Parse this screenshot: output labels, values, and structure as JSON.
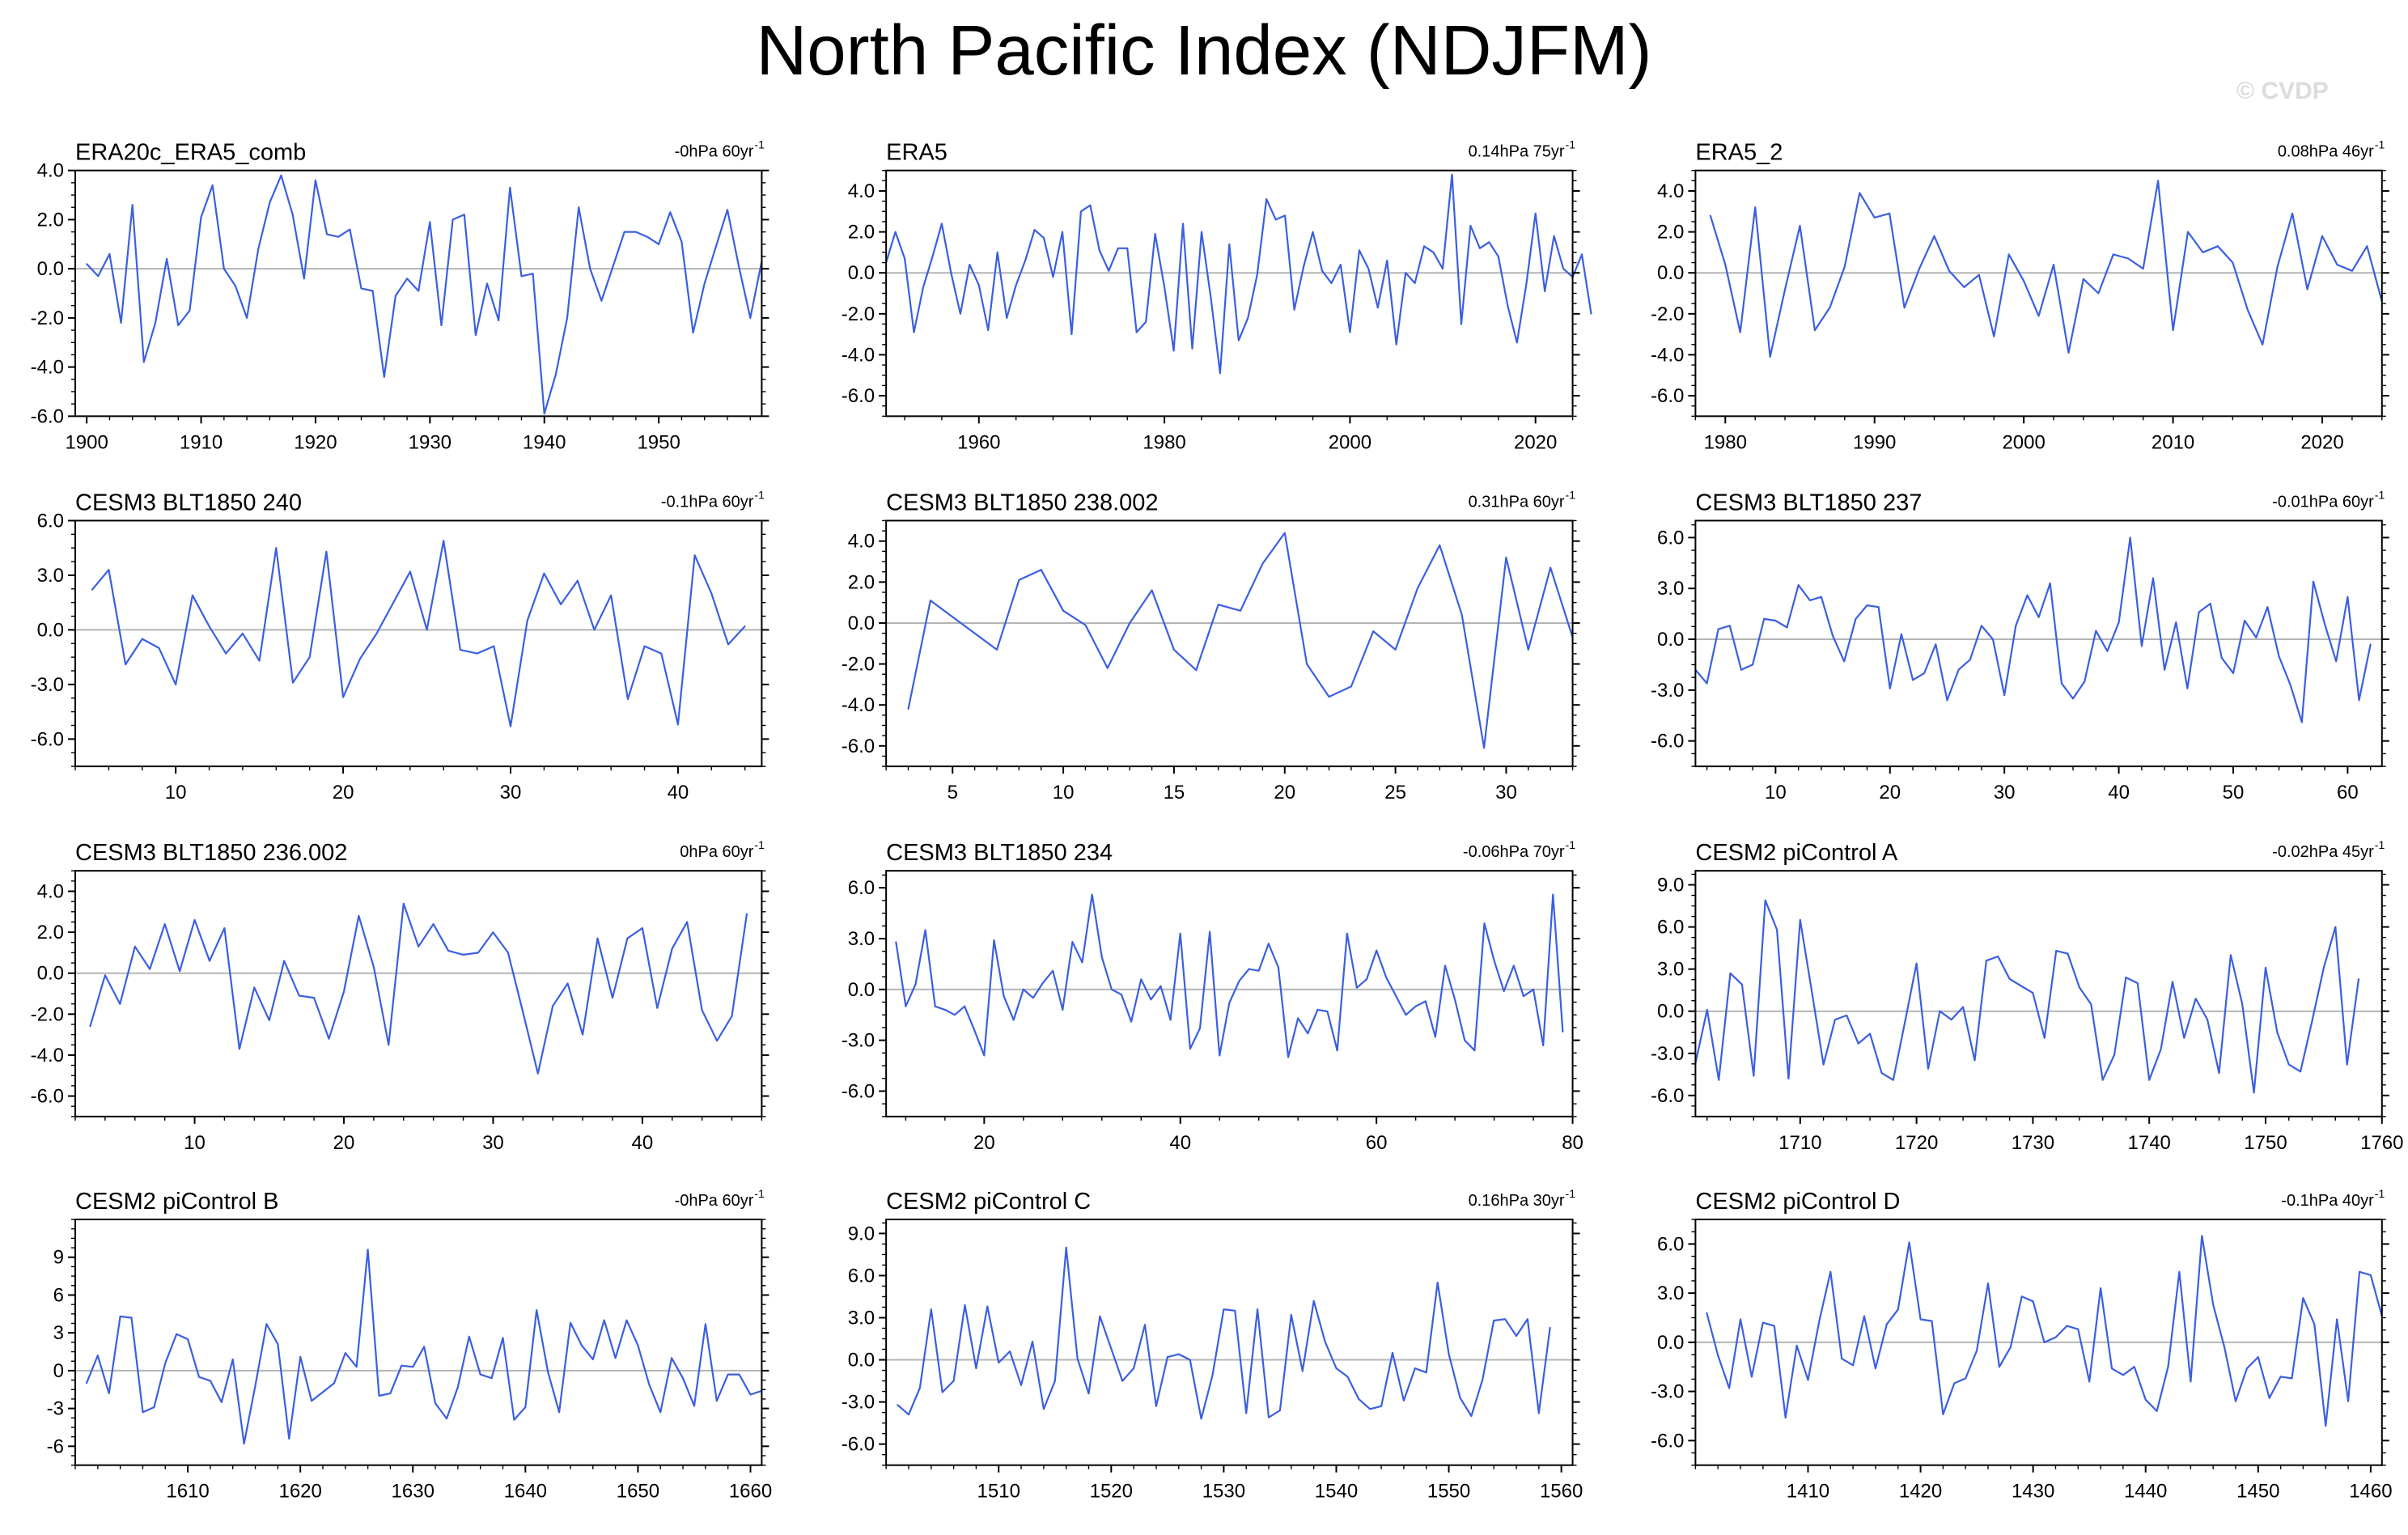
{
  "title": "North Pacific Index (NDJFM)",
  "watermark": "© CVDP",
  "style": {
    "line_color": "#3b5fe0",
    "zero_line_color": "#b4b4b4",
    "secondary_line_color": "#777777"
  },
  "chart_data": [
    {
      "type": "line",
      "title": "ERA20c_ERA5_comb",
      "trend": "-0hPa 60yr",
      "xlim": [
        1899,
        1959
      ],
      "ylim": [
        -6,
        4
      ],
      "xticks": [
        1900,
        1910,
        1920,
        1930,
        1940,
        1950
      ],
      "yticks": [
        -6,
        -4,
        -2,
        0,
        2,
        4
      ],
      "ytick_labels": [
        "-6.0",
        "-4.0",
        "-2.0",
        "0.0",
        "2.0",
        "4.0"
      ],
      "x_start": 1900,
      "series": [
        {
          "values": [
            0.2,
            -0.3,
            0.6,
            -2.2,
            2.6,
            -3.8,
            -2.2,
            0.4,
            -2.3,
            -1.7,
            2.1,
            3.4,
            0.0,
            -0.7,
            -2.0,
            0.8,
            2.7,
            3.8,
            2.2,
            -0.4,
            3.6,
            1.4,
            1.3,
            1.6,
            -0.8,
            -0.9,
            -4.4,
            -1.1,
            -0.4,
            -0.9,
            1.9,
            -2.3,
            2.0,
            2.2,
            -2.7,
            -0.6,
            -2.1,
            3.3,
            -0.3,
            -0.2,
            -5.9,
            -4.3,
            -2.0,
            2.5,
            0.0,
            -1.3,
            0.1,
            1.5,
            1.5,
            1.3,
            1.0,
            2.3,
            1.1,
            -2.6,
            -0.6,
            0.9,
            2.4,
            0.1,
            -2.0,
            0.3
          ]
        }
      ]
    },
    {
      "type": "line",
      "title": "ERA5",
      "trend": "0.14hPa 75yr",
      "xlim": [
        1950,
        2024
      ],
      "ylim": [
        -7,
        5
      ],
      "xticks": [
        1960,
        1980,
        2000,
        2020
      ],
      "yticks": [
        -6,
        -4,
        -2,
        0,
        2,
        4
      ],
      "ytick_labels": [
        "-6.0",
        "-4.0",
        "-2.0",
        "0.0",
        "2.0",
        "4.0"
      ],
      "x_start": 1950,
      "series": [
        {
          "values": [
            0.5,
            2.0,
            0.7,
            -2.9,
            -0.7,
            0.8,
            2.4,
            0.0,
            -2.0,
            0.4,
            -0.6,
            -2.8,
            1.0,
            -2.2,
            -0.6,
            0.6,
            2.1,
            1.7,
            -0.2,
            2.0,
            -3.0,
            3.0,
            3.3,
            1.1,
            0.1,
            1.2,
            1.2,
            -2.9,
            -2.4,
            1.9,
            -0.7,
            -3.8,
            2.4,
            -3.7,
            2.0,
            -1.2,
            -4.9,
            1.4,
            -3.3,
            -2.2,
            -0.1,
            3.6,
            2.6,
            2.8,
            -1.8,
            0.3,
            2.0,
            0.1,
            -0.5,
            0.4,
            -2.9,
            1.1,
            0.2,
            -1.7,
            0.6,
            -3.5,
            0.0,
            -0.5,
            1.3,
            1.0,
            0.2,
            4.8,
            -2.5,
            2.3,
            1.2,
            1.5,
            0.8,
            -1.6,
            -3.4,
            -0.6,
            2.9,
            -0.9,
            1.8,
            0.2,
            -0.2,
            0.9,
            -2.0
          ]
        }
      ]
    },
    {
      "type": "line",
      "title": "ERA5_2",
      "trend": "0.08hPa 46yr",
      "xlim": [
        1978,
        2024
      ],
      "ylim": [
        -7,
        5
      ],
      "xticks": [
        1980,
        1990,
        2000,
        2010,
        2020
      ],
      "yticks": [
        -6,
        -4,
        -2,
        0,
        2,
        4
      ],
      "ytick_labels": [
        "-6.0",
        "-4.0",
        "-2.0",
        "0.0",
        "2.0",
        "4.0"
      ],
      "x_start": 1979,
      "series": [
        {
          "values": [
            2.8,
            0.4,
            -2.9,
            3.2,
            -4.1,
            -0.8,
            2.3,
            -2.8,
            -1.7,
            0.3,
            3.9,
            2.7,
            2.9,
            -1.7,
            0.2,
            1.8,
            0.1,
            -0.7,
            -0.1,
            -3.1,
            0.9,
            -0.4,
            -2.1,
            0.4,
            -3.9,
            -0.3,
            -1.0,
            0.9,
            0.7,
            0.2,
            4.5,
            -2.8,
            2.0,
            1.0,
            1.3,
            0.5,
            -1.8,
            -3.5,
            0.3,
            2.9,
            -0.8,
            1.8,
            0.4,
            0.1,
            1.3,
            -1.4
          ]
        }
      ]
    },
    {
      "type": "line",
      "title": "CESM3 BLT1850 240",
      "trend": "-0.1hPa 60yr",
      "xlim": [
        4,
        45
      ],
      "ylim": [
        -7.5,
        6
      ],
      "xticks": [
        10,
        20,
        30,
        40
      ],
      "yticks": [
        -6,
        -3,
        0,
        3,
        6
      ],
      "ytick_labels": [
        "-6.0",
        "-3.0",
        "0.0",
        "3.0",
        "6.0"
      ],
      "x_start": 5,
      "series": [
        {
          "values": [
            2.2,
            3.3,
            -1.9,
            -0.5,
            -1.0,
            -3.0,
            1.9,
            0.2,
            -1.3,
            -0.2,
            -1.7,
            4.5,
            -2.9,
            -1.5,
            4.3,
            -3.7,
            -1.6,
            -0.2,
            1.5,
            3.2,
            0.0,
            4.9,
            -1.1,
            -1.3,
            -0.9,
            -5.3,
            0.5,
            3.1,
            1.4,
            2.7,
            0.0,
            1.9,
            -3.8,
            -0.9,
            -1.3,
            -5.2,
            4.1,
            2.0,
            -0.8,
            0.2
          ]
        }
      ]
    },
    {
      "type": "line",
      "title": "CESM3 BLT1850 238.002",
      "trend": "0.31hPa 60yr",
      "xlim": [
        2,
        33
      ],
      "ylim": [
        -7,
        5
      ],
      "xticks": [
        5,
        10,
        15,
        20,
        25,
        30
      ],
      "yticks": [
        -6,
        -4,
        -2,
        0,
        2,
        4
      ],
      "ytick_labels": [
        "-6.0",
        "-4.0",
        "-2.0",
        "0.0",
        "2.0",
        "4.0"
      ],
      "x_start": 3,
      "series": [
        {
          "values": [
            -4.2,
            1.1,
            0.3,
            -0.5,
            -1.3,
            2.1,
            2.6,
            0.6,
            -0.1,
            -2.2,
            0.0,
            1.6,
            -1.3,
            -2.3,
            0.9,
            0.6,
            2.9,
            4.4,
            -2.0,
            -3.6,
            -3.1,
            -0.4,
            -1.3,
            1.7,
            3.8,
            0.4,
            -6.1,
            3.2,
            -1.3,
            2.7,
            -0.7
          ]
        }
      ]
    },
    {
      "type": "line",
      "title": "CESM3 BLT1850 237",
      "trend": "-0.01hPa 60yr",
      "xlim": [
        3,
        63
      ],
      "ylim": [
        -7.5,
        7
      ],
      "xticks": [
        10,
        20,
        30,
        40,
        50,
        60
      ],
      "yticks": [
        -6,
        -3,
        0,
        3,
        6
      ],
      "ytick_labels": [
        "-6.0",
        "-3.0",
        "0.0",
        "3.0",
        "6.0"
      ],
      "x_start": 3,
      "series": [
        {
          "values": [
            -1.8,
            -2.6,
            0.6,
            0.8,
            -1.8,
            -1.5,
            1.2,
            1.1,
            0.7,
            3.2,
            2.3,
            2.5,
            0.2,
            -1.3,
            1.2,
            2.0,
            1.9,
            -2.9,
            0.3,
            -2.4,
            -2.0,
            -0.3,
            -3.6,
            -1.8,
            -1.2,
            0.8,
            0.0,
            -3.3,
            0.8,
            2.6,
            1.3,
            3.3,
            -2.6,
            -3.5,
            -2.5,
            0.5,
            -0.7,
            1.0,
            6.0,
            -0.4,
            3.6,
            -1.8,
            1.0,
            -2.9,
            1.6,
            2.1,
            -1.1,
            -2.0,
            1.1,
            0.1,
            1.9,
            -1.0,
            -2.7,
            -4.9,
            3.4,
            0.9,
            -1.3,
            2.5,
            -3.6,
            -0.3
          ]
        }
      ]
    },
    {
      "type": "line",
      "title": "CESM3 BLT1850 236.002",
      "trend": "0hPa 60yr",
      "xlim": [
        2,
        48
      ],
      "ylim": [
        -7,
        5
      ],
      "xticks": [
        10,
        20,
        30,
        40
      ],
      "yticks": [
        -6,
        -4,
        -2,
        0,
        2,
        4
      ],
      "ytick_labels": [
        "-6.0",
        "-4.0",
        "-2.0",
        "0.0",
        "2.0",
        "4.0"
      ],
      "x_start": 3,
      "series": [
        {
          "values": [
            -2.6,
            -0.1,
            -1.5,
            1.3,
            0.2,
            2.4,
            0.1,
            2.6,
            0.6,
            2.2,
            -3.7,
            -0.7,
            -2.3,
            0.6,
            -1.1,
            -1.2,
            -3.2,
            -0.9,
            2.8,
            0.3,
            -3.5,
            3.4,
            1.3,
            2.4,
            1.1,
            0.9,
            1.0,
            2.0,
            1.0,
            -1.9,
            -4.9,
            -1.6,
            -0.5,
            -3.0,
            1.7,
            -1.2,
            1.7,
            2.2,
            -1.7,
            1.2,
            2.5,
            -1.8,
            -3.3,
            -2.1,
            2.9
          ]
        }
      ]
    },
    {
      "type": "line",
      "title": "CESM3 BLT1850 234",
      "trend": "-0.06hPa 70yr",
      "xlim": [
        10,
        80
      ],
      "ylim": [
        -7.5,
        7
      ],
      "xticks": [
        20,
        40,
        60,
        80
      ],
      "yticks": [
        -6,
        -3,
        0,
        3,
        6
      ],
      "ytick_labels": [
        "-6.0",
        "-3.0",
        "0.0",
        "3.0",
        "6.0"
      ],
      "x_start": 11,
      "series": [
        {
          "values": [
            2.8,
            -1.0,
            0.3,
            3.5,
            -1.0,
            -1.2,
            -1.5,
            -1.0,
            -2.4,
            -3.9,
            2.9,
            -0.4,
            -1.8,
            0.0,
            -0.5,
            0.4,
            1.1,
            -1.2,
            2.8,
            1.6,
            5.6,
            1.9,
            0.0,
            -0.3,
            -1.9,
            0.6,
            -0.6,
            0.2,
            -1.8,
            3.3,
            -3.5,
            -2.3,
            3.4,
            -3.9,
            -0.8,
            0.5,
            1.2,
            1.1,
            2.7,
            1.3,
            -4.0,
            -1.7,
            -2.6,
            -1.2,
            -1.3,
            -3.6,
            3.3,
            0.1,
            0.6,
            2.3,
            0.7,
            -0.4,
            -1.5,
            -1.0,
            -0.7,
            -2.8,
            1.4,
            -0.6,
            -3.0,
            -3.6,
            3.9,
            1.7,
            -0.1,
            1.4,
            -0.4,
            0.0,
            -3.3,
            5.6,
            -2.5
          ]
        }
      ]
    },
    {
      "type": "line",
      "title": "CESM2 piControl A",
      "trend": "-0.02hPa 45yr",
      "xlim": [
        1701,
        1760
      ],
      "ylim": [
        -7.5,
        10
      ],
      "xticks": [
        1710,
        1720,
        1730,
        1740,
        1750,
        1760
      ],
      "yticks": [
        -6,
        -3,
        0,
        3,
        6,
        9
      ],
      "ytick_labels": [
        "-6.0",
        "-3.0",
        "0.0",
        "3.0",
        "6.0",
        "9.0"
      ],
      "x_start": 1701,
      "series": [
        {
          "values": [
            -3.7,
            0.1,
            -4.9,
            2.7,
            1.9,
            -4.6,
            7.9,
            5.8,
            -4.8,
            6.5,
            1.4,
            -3.8,
            -0.6,
            -0.3,
            -2.3,
            -1.6,
            -4.4,
            -4.9,
            -0.8,
            3.4,
            -4.1,
            0.0,
            -0.6,
            0.3,
            -3.5,
            3.6,
            3.9,
            2.3,
            1.8,
            1.3,
            -1.9,
            4.3,
            4.1,
            1.7,
            0.5,
            -4.9,
            -3.1,
            2.4,
            2.0,
            -4.9,
            -2.7,
            2.1,
            -1.9,
            0.9,
            -0.6,
            -4.4,
            4.0,
            0.5,
            -5.8,
            3.1,
            -1.5,
            -3.8,
            -4.3,
            -0.7,
            3.1,
            6.0,
            -3.8,
            2.3
          ]
        }
      ]
    },
    {
      "type": "line",
      "title": "CESM2 piControl B",
      "trend": "-0hPa 60yr",
      "xlim": [
        1600,
        1661
      ],
      "ylim": [
        -7.5,
        12
      ],
      "xticks": [
        1610,
        1620,
        1630,
        1640,
        1650,
        1660
      ],
      "yticks": [
        -6,
        -3,
        0,
        3,
        6,
        9
      ],
      "ytick_labels": [
        "-6",
        "-3",
        "0",
        "3",
        "6",
        "9"
      ],
      "x_start": 1601,
      "series": [
        {
          "values": [
            -1.0,
            1.2,
            -1.8,
            4.3,
            4.2,
            -3.3,
            -2.9,
            0.6,
            2.9,
            2.5,
            -0.5,
            -0.8,
            -2.5,
            0.9,
            -5.8,
            -1.2,
            3.7,
            2.1,
            -5.4,
            1.1,
            -2.4,
            -1.7,
            -1.0,
            1.4,
            0.3,
            9.6,
            -2.0,
            -1.8,
            0.4,
            0.3,
            1.9,
            -2.6,
            -3.8,
            -1.3,
            2.7,
            -0.3,
            -0.6,
            2.6,
            -3.9,
            -2.9,
            4.8,
            -0.1,
            -3.3,
            3.8,
            2.0,
            0.9,
            4.0,
            1.0,
            4.0,
            2.0,
            -1.1,
            -3.3,
            1.0,
            -0.6,
            -2.8,
            3.7,
            -2.4,
            -0.3,
            -0.3,
            -1.9,
            -1.6
          ]
        }
      ]
    },
    {
      "type": "line",
      "title": "CESM2 piControl C",
      "trend": "0.16hPa 30yr",
      "xlim": [
        1500,
        1561
      ],
      "ylim": [
        -7.5,
        10
      ],
      "xticks": [
        1510,
        1520,
        1530,
        1540,
        1550,
        1560
      ],
      "yticks": [
        -6,
        -3,
        0,
        3,
        6,
        9
      ],
      "ytick_labels": [
        "-6.0",
        "-3.0",
        "0.0",
        "3.0",
        "6.0",
        "9.0"
      ],
      "x_start": 1501,
      "series": [
        {
          "values": [
            -3.2,
            -3.9,
            -2.0,
            3.6,
            -2.3,
            -1.5,
            3.9,
            -0.6,
            3.8,
            -0.2,
            0.6,
            -1.8,
            1.3,
            -3.5,
            -1.5,
            8.0,
            0.1,
            -2.4,
            3.1,
            0.8,
            -1.5,
            -0.6,
            2.5,
            -3.3,
            0.2,
            0.4,
            0.0,
            -4.2,
            -1.1,
            3.6,
            3.5,
            -3.8,
            3.6,
            -4.1,
            -3.6,
            3.2,
            -0.8,
            4.2,
            1.3,
            -0.6,
            -1.2,
            -2.8,
            -3.5,
            -3.3,
            0.5,
            -2.9,
            -0.6,
            -0.9,
            5.5,
            0.4,
            -2.7,
            -4.0,
            -1.4,
            2.8,
            2.9,
            1.7,
            2.9,
            -3.8,
            2.3
          ]
        }
      ]
    },
    {
      "type": "line",
      "title": "CESM2 piControl D",
      "trend": "-0.1hPa 40yr",
      "xlim": [
        1400,
        1461
      ],
      "ylim": [
        -7.5,
        7.5
      ],
      "xticks": [
        1410,
        1420,
        1430,
        1440,
        1450,
        1460
      ],
      "yticks": [
        -6,
        -3,
        0,
        3,
        6
      ],
      "ytick_labels": [
        "-6.0",
        "-3.0",
        "0.0",
        "3.0",
        "6.0"
      ],
      "x_start": 1401,
      "series": [
        {
          "values": [
            1.8,
            -0.8,
            -2.8,
            1.4,
            -2.1,
            1.2,
            1.0,
            -4.6,
            -0.2,
            -2.3,
            1.3,
            4.3,
            -1.0,
            -1.4,
            1.6,
            -1.6,
            1.1,
            2.0,
            6.1,
            1.4,
            1.3,
            -4.4,
            -2.5,
            -2.2,
            -0.5,
            3.6,
            -1.5,
            -0.3,
            2.8,
            2.5,
            0.0,
            0.3,
            1.0,
            0.8,
            -2.4,
            3.3,
            -1.6,
            -2.0,
            -1.5,
            -3.5,
            -4.2,
            -1.5,
            4.3,
            -2.4,
            6.5,
            2.3,
            -0.3,
            -3.6,
            -1.6,
            -0.9,
            -3.4,
            -2.1,
            -2.2,
            2.7,
            1.1,
            -5.1,
            1.4,
            -3.6,
            4.3,
            4.1,
            1.6
          ]
        }
      ]
    }
  ]
}
